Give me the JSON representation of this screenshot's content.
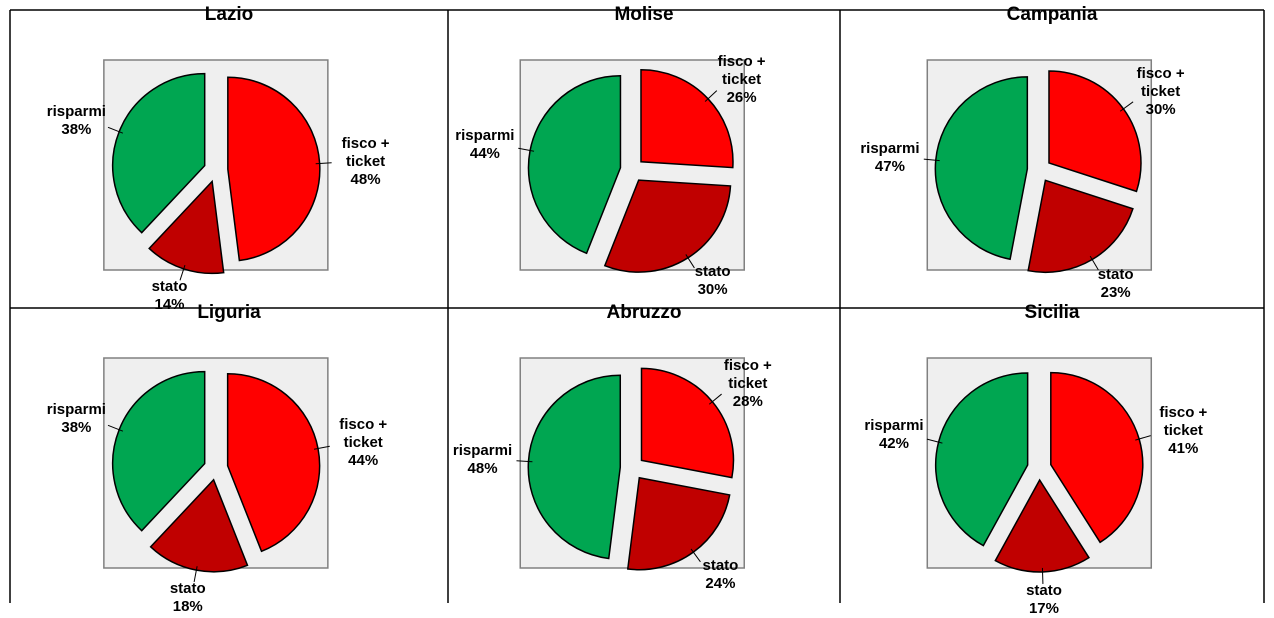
{
  "chart_data": [
    {
      "type": "pie",
      "title": "Lazio",
      "categories": [
        "fisco + ticket",
        "stato",
        "risparmi"
      ],
      "values": [
        48,
        14,
        38
      ],
      "value_labels": [
        "48%",
        "14%",
        "38%"
      ],
      "colors": [
        "#ff0000",
        "#c00000",
        "#00a651"
      ]
    },
    {
      "type": "pie",
      "title": "Molise",
      "categories": [
        "fisco + ticket",
        "stato",
        "risparmi"
      ],
      "values": [
        26,
        30,
        44
      ],
      "value_labels": [
        "26%",
        "30%",
        "44%"
      ],
      "colors": [
        "#ff0000",
        "#c00000",
        "#00a651"
      ]
    },
    {
      "type": "pie",
      "title": "Campania",
      "categories": [
        "fisco + ticket",
        "stato",
        "risparmi"
      ],
      "values": [
        30,
        23,
        47
      ],
      "value_labels": [
        "30%",
        "23%",
        "47%"
      ],
      "colors": [
        "#ff0000",
        "#c00000",
        "#00a651"
      ]
    },
    {
      "type": "pie",
      "title": "Liguria",
      "categories": [
        "fisco + ticket",
        "stato",
        "risparmi"
      ],
      "values": [
        44,
        18,
        38
      ],
      "value_labels": [
        "44%",
        "18%",
        "38%"
      ],
      "colors": [
        "#ff0000",
        "#c00000",
        "#00a651"
      ]
    },
    {
      "type": "pie",
      "title": "Abruzzo",
      "categories": [
        "fisco + ticket",
        "stato",
        "risparmi"
      ],
      "values": [
        28,
        24,
        48
      ],
      "value_labels": [
        "28%",
        "24%",
        "48%"
      ],
      "colors": [
        "#ff0000",
        "#c00000",
        "#00a651"
      ]
    },
    {
      "type": "pie",
      "title": "Sicilia",
      "categories": [
        "fisco + ticket",
        "stato",
        "risparmi"
      ],
      "values": [
        41,
        17,
        42
      ],
      "value_labels": [
        "41%",
        "17%",
        "42%"
      ],
      "colors": [
        "#ff0000",
        "#c00000",
        "#00a651"
      ]
    }
  ]
}
